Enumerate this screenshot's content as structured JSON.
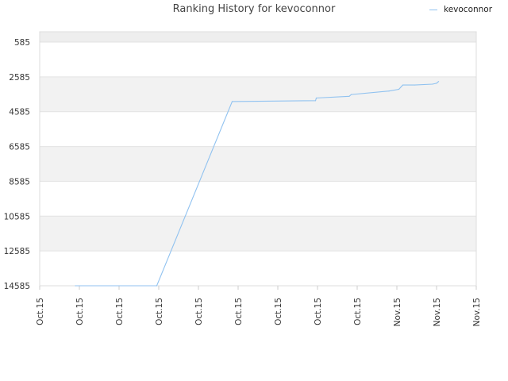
{
  "chart_data": {
    "type": "line",
    "title": "Ranking History for kevoconnor",
    "xlabel": "",
    "ylabel": "",
    "y_inverted": true,
    "ylim": [
      14585,
      585
    ],
    "yticks": [
      585,
      2585,
      4585,
      6585,
      8585,
      10585,
      12585,
      14585
    ],
    "xticks": [
      "Oct.15",
      "Oct.15",
      "Oct.15",
      "Oct.15",
      "Oct.15",
      "Oct.15",
      "Oct.15",
      "Oct.15",
      "Oct.15",
      "Nov.15",
      "Nov.15",
      "Nov.15"
    ],
    "grid": true,
    "legend_position": "top-right",
    "series": [
      {
        "name": "kevoconnor",
        "color": "#90c2f0",
        "x": [
          0.9,
          2.95,
          4.85,
          6.95,
          6.97,
          7.8,
          7.85,
          8.8,
          9.05,
          9.15,
          9.45,
          9.9,
          10.0,
          10.05
        ],
        "y": [
          14585,
          14585,
          4000,
          3950,
          3800,
          3700,
          3600,
          3400,
          3300,
          3050,
          3050,
          3000,
          2950,
          2850
        ]
      }
    ]
  }
}
